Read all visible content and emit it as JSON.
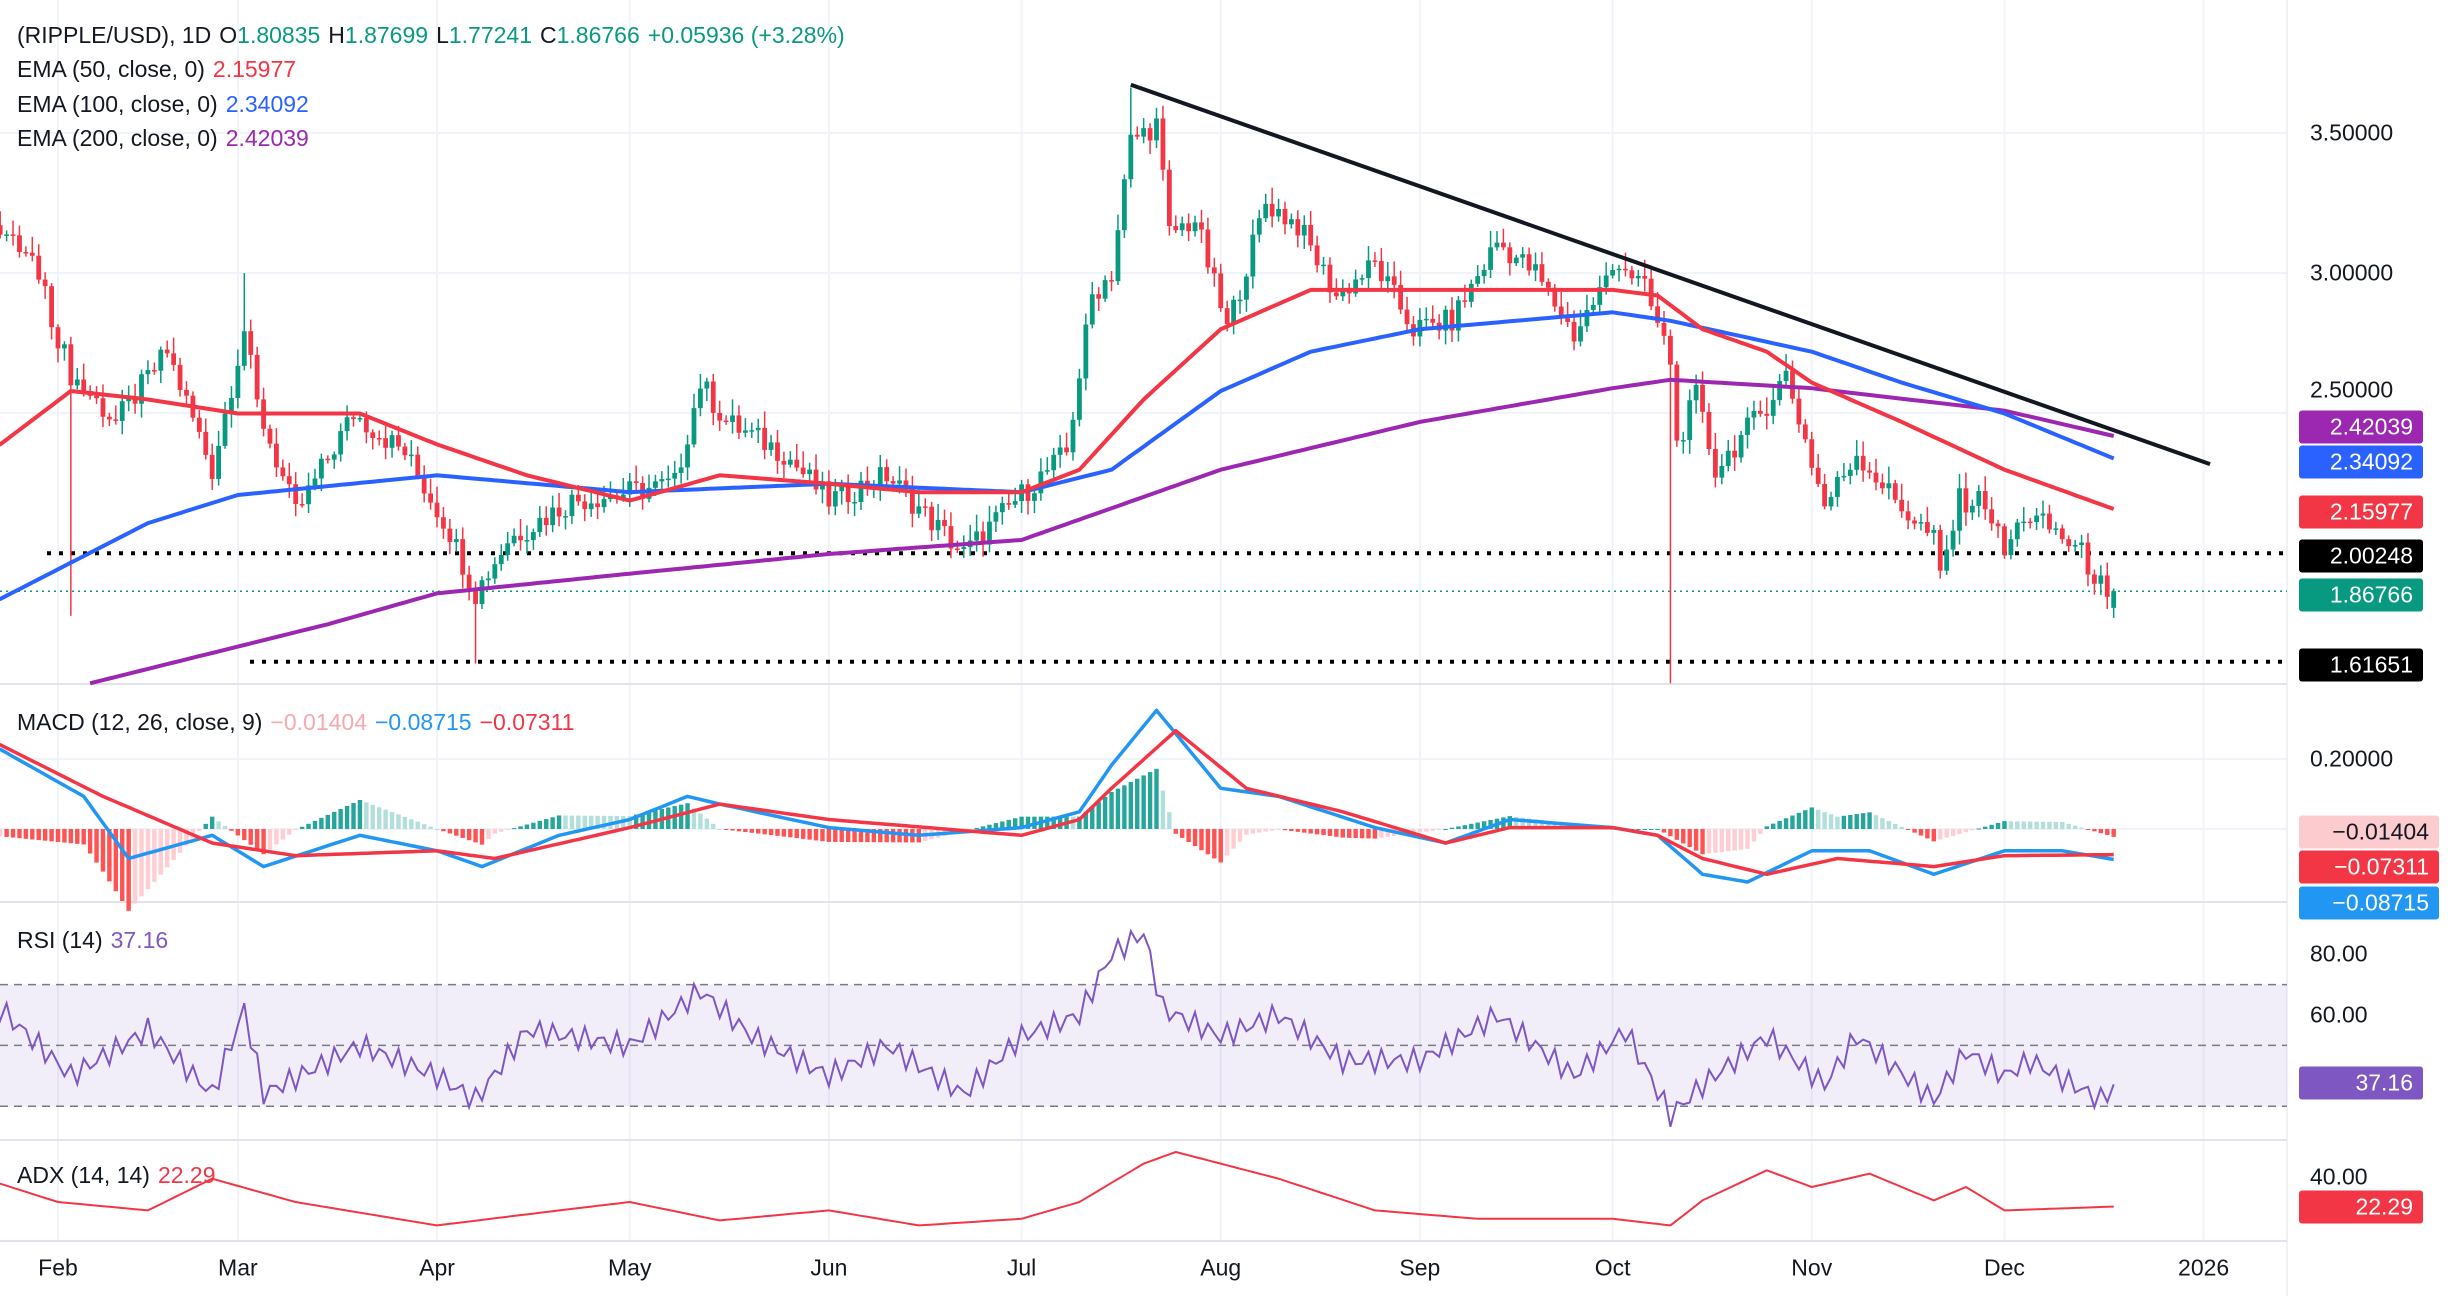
{
  "legend": {
    "symbol": "(RIPPLE/USD), 1D",
    "o_label": "O",
    "o": "1.80835",
    "h_label": "H",
    "h": "1.87699",
    "l_label": "L",
    "l": "1.77241",
    "c_label": "C",
    "c": "1.86766",
    "change": "+0.05936 (+3.28%)",
    "ema50_label": "EMA (50, close, 0)",
    "ema50": "2.15977",
    "ema100_label": "EMA (100, close, 0)",
    "ema100": "2.34092",
    "ema200_label": "EMA (200, close, 0)",
    "ema200": "2.42039"
  },
  "macd_legend": {
    "label": "MACD (12, 26, close, 9)",
    "hist": "−0.01404",
    "macd": "−0.08715",
    "signal": "−0.07311"
  },
  "rsi_legend": {
    "label": "RSI (14)",
    "value": "37.16"
  },
  "adx_legend": {
    "label": "ADX (14, 14)",
    "value": "22.29"
  },
  "axes": {
    "price_ticks": [
      "3.50000",
      "3.00000",
      "2.50000"
    ],
    "macd_ticks": [
      "0.20000"
    ],
    "rsi_ticks": [
      "80.00",
      "60.00"
    ],
    "adx_ticks": [
      "40.00"
    ],
    "months": [
      "Feb",
      "Mar",
      "Apr",
      "May",
      "Jun",
      "Jul",
      "Aug",
      "Sep",
      "Oct",
      "Nov",
      "Dec",
      "2026"
    ]
  },
  "tags": {
    "ema200": "2.42039",
    "ema100": "2.34092",
    "ema50": "2.15977",
    "support1": "2.00248",
    "last": "1.86766",
    "support2": "1.61651",
    "macd_hist": "−0.01404",
    "macd_signal": "−0.07311",
    "macd_line": "−0.08715",
    "rsi": "37.16",
    "adx": "22.29"
  },
  "colors": {
    "up": "#089981",
    "down": "#F23645",
    "ema50": "#F23645",
    "ema100": "#2962FF",
    "ema200": "#9C27B0",
    "macd": "#2196F3",
    "signal": "#F23645",
    "rsi": "#7E57C2",
    "adx": "#F23645",
    "trendline": "#131722"
  },
  "chart_data": [
    {
      "type": "candlestick",
      "title": "(RIPPLE/USD), 1D",
      "year": 2025,
      "close_path": [
        [
          "01-23",
          3.14
        ],
        [
          "01-28",
          3.05
        ],
        [
          "02-03",
          2.64
        ],
        [
          "02-10",
          2.47
        ],
        [
          "02-18",
          2.72
        ],
        [
          "02-25",
          2.3
        ],
        [
          "03-02",
          2.8
        ],
        [
          "03-04",
          2.53
        ],
        [
          "03-10",
          2.14
        ],
        [
          "03-19",
          2.5
        ],
        [
          "03-27",
          2.36
        ],
        [
          "04-03",
          2.08
        ],
        [
          "04-07",
          1.86
        ],
        [
          "04-12",
          2.05
        ],
        [
          "04-22",
          2.19
        ],
        [
          "05-01",
          2.22
        ],
        [
          "05-08",
          2.25
        ],
        [
          "05-12",
          2.61
        ],
        [
          "05-16",
          2.47
        ],
        [
          "05-25",
          2.36
        ],
        [
          "06-01",
          2.19
        ],
        [
          "06-10",
          2.28
        ],
        [
          "06-22",
          2.0
        ],
        [
          "06-30",
          2.19
        ],
        [
          "07-08",
          2.36
        ],
        [
          "07-12",
          2.92
        ],
        [
          "07-15",
          3.0
        ],
        [
          "07-18",
          3.47
        ],
        [
          "07-22",
          3.53
        ],
        [
          "07-24",
          3.14
        ],
        [
          "07-28",
          3.19
        ],
        [
          "08-02",
          2.8
        ],
        [
          "08-08",
          3.25
        ],
        [
          "08-13",
          3.17
        ],
        [
          "08-19",
          2.92
        ],
        [
          "08-25",
          3.03
        ],
        [
          "08-31",
          2.8
        ],
        [
          "09-06",
          2.83
        ],
        [
          "09-13",
          3.11
        ],
        [
          "09-19",
          3.0
        ],
        [
          "09-25",
          2.78
        ],
        [
          "10-02",
          3.05
        ],
        [
          "10-06",
          2.94
        ],
        [
          "10-10",
          2.69
        ],
        [
          "10-11",
          2.39
        ],
        [
          "10-14",
          2.56
        ],
        [
          "10-17",
          2.3
        ],
        [
          "10-24",
          2.5
        ],
        [
          "10-28",
          2.64
        ],
        [
          "11-03",
          2.17
        ],
        [
          "11-08",
          2.36
        ],
        [
          "11-14",
          2.19
        ],
        [
          "11-20",
          2.05
        ],
        [
          "11-21",
          1.92
        ],
        [
          "11-24",
          2.19
        ],
        [
          "11-28",
          2.19
        ],
        [
          "12-01",
          2.0
        ],
        [
          "12-04",
          2.14
        ],
        [
          "12-09",
          2.08
        ],
        [
          "12-13",
          2.0
        ],
        [
          "12-16",
          1.89
        ],
        [
          "12-17",
          1.81
        ],
        [
          "12-18",
          1.86766
        ]
      ],
      "notable_wicks": [
        [
          "02-03",
          "low",
          1.78
        ],
        [
          "03-02",
          "high",
          3.0
        ],
        [
          "04-07",
          "low",
          1.61
        ],
        [
          "07-18",
          "high",
          3.66
        ],
        [
          "10-10",
          "low",
          1.54
        ]
      ],
      "ema50": [
        [
          "01-23",
          2.39
        ],
        [
          "02-03",
          2.58
        ],
        [
          "02-15",
          2.55
        ],
        [
          "03-01",
          2.5
        ],
        [
          "03-20",
          2.5
        ],
        [
          "04-01",
          2.39
        ],
        [
          "04-15",
          2.28
        ],
        [
          "05-01",
          2.19
        ],
        [
          "05-15",
          2.28
        ],
        [
          "06-01",
          2.25
        ],
        [
          "06-15",
          2.22
        ],
        [
          "07-01",
          2.22
        ],
        [
          "07-10",
          2.3
        ],
        [
          "07-20",
          2.55
        ],
        [
          "08-01",
          2.8
        ],
        [
          "08-15",
          2.94
        ],
        [
          "09-01",
          2.94
        ],
        [
          "09-15",
          2.94
        ],
        [
          "10-01",
          2.94
        ],
        [
          "10-08",
          2.92
        ],
        [
          "10-15",
          2.8
        ],
        [
          "10-25",
          2.72
        ],
        [
          "11-01",
          2.61
        ],
        [
          "11-15",
          2.47
        ],
        [
          "12-01",
          2.3
        ],
        [
          "12-18",
          2.16
        ]
      ],
      "ema100": [
        [
          "01-23",
          1.84
        ],
        [
          "02-15",
          2.11
        ],
        [
          "03-01",
          2.21
        ],
        [
          "04-01",
          2.28
        ],
        [
          "05-01",
          2.22
        ],
        [
          "06-01",
          2.25
        ],
        [
          "07-01",
          2.22
        ],
        [
          "07-15",
          2.3
        ],
        [
          "08-01",
          2.58
        ],
        [
          "08-15",
          2.72
        ],
        [
          "09-01",
          2.8
        ],
        [
          "10-01",
          2.86
        ],
        [
          "10-10",
          2.83
        ],
        [
          "11-01",
          2.72
        ],
        [
          "11-15",
          2.61
        ],
        [
          "12-01",
          2.5
        ],
        [
          "12-18",
          2.34
        ]
      ],
      "ema200": [
        [
          "02-06",
          1.54
        ],
        [
          "03-15",
          1.75
        ],
        [
          "04-01",
          1.86
        ],
        [
          "05-01",
          1.93
        ],
        [
          "06-01",
          2.0
        ],
        [
          "07-01",
          2.05
        ],
        [
          "08-01",
          2.3
        ],
        [
          "09-01",
          2.47
        ],
        [
          "10-01",
          2.59
        ],
        [
          "10-10",
          2.62
        ],
        [
          "11-01",
          2.59
        ],
        [
          "12-01",
          2.51
        ],
        [
          "12-18",
          2.42
        ]
      ],
      "trendline": [
        [
          "07-18",
          3.67
        ],
        [
          "01-02",
          2.32
        ]
      ],
      "horizontal_levels": [
        2.00248,
        1.61651
      ],
      "last_price": 1.86766,
      "y_ticks": [
        3.5,
        3.0,
        2.5
      ]
    },
    {
      "type": "line",
      "title": "MACD (12, 26, close, 9)",
      "macd": [
        [
          "01-23",
          0.227
        ],
        [
          "02-05",
          0.093
        ],
        [
          "02-12",
          -0.084
        ],
        [
          "02-25",
          -0.018
        ],
        [
          "03-05",
          -0.107
        ],
        [
          "03-20",
          -0.018
        ],
        [
          "04-01",
          -0.062
        ],
        [
          "04-08",
          -0.107
        ],
        [
          "04-20",
          -0.018
        ],
        [
          "05-01",
          0.027
        ],
        [
          "05-10",
          0.093
        ],
        [
          "05-15",
          0.071
        ],
        [
          "06-01",
          0.004
        ],
        [
          "06-15",
          -0.018
        ],
        [
          "07-01",
          0.004
        ],
        [
          "07-10",
          0.049
        ],
        [
          "07-15",
          0.182
        ],
        [
          "07-22",
          0.338
        ],
        [
          "08-01",
          0.116
        ],
        [
          "08-10",
          0.093
        ],
        [
          "08-25",
          0.004
        ],
        [
          "09-05",
          -0.04
        ],
        [
          "09-15",
          0.027
        ],
        [
          "10-01",
          0.004
        ],
        [
          "10-08",
          -0.018
        ],
        [
          "10-15",
          -0.129
        ],
        [
          "10-22",
          -0.151
        ],
        [
          "11-01",
          -0.062
        ],
        [
          "11-10",
          -0.062
        ],
        [
          "11-20",
          -0.129
        ],
        [
          "12-01",
          -0.062
        ],
        [
          "12-10",
          -0.062
        ],
        [
          "12-18",
          -0.087
        ]
      ],
      "signal": [
        [
          "01-23",
          0.24
        ],
        [
          "02-08",
          0.093
        ],
        [
          "02-25",
          -0.04
        ],
        [
          "03-10",
          -0.076
        ],
        [
          "04-01",
          -0.062
        ],
        [
          "04-10",
          -0.084
        ],
        [
          "05-01",
          0.004
        ],
        [
          "05-15",
          0.071
        ],
        [
          "06-01",
          0.027
        ],
        [
          "07-01",
          -0.018
        ],
        [
          "07-10",
          0.027
        ],
        [
          "07-15",
          0.116
        ],
        [
          "07-25",
          0.28
        ],
        [
          "08-05",
          0.116
        ],
        [
          "08-20",
          0.049
        ],
        [
          "09-05",
          -0.04
        ],
        [
          "09-15",
          0.004
        ],
        [
          "10-01",
          0.004
        ],
        [
          "10-08",
          -0.018
        ],
        [
          "10-15",
          -0.084
        ],
        [
          "10-25",
          -0.129
        ],
        [
          "11-05",
          -0.084
        ],
        [
          "11-20",
          -0.107
        ],
        [
          "12-01",
          -0.076
        ],
        [
          "12-18",
          -0.073
        ]
      ],
      "y_ticks": [
        0.2
      ]
    },
    {
      "type": "line",
      "title": "RSI (14)",
      "band": [
        30,
        70
      ],
      "middle": 50,
      "values": [
        [
          "01-23",
          62
        ],
        [
          "02-03",
          40
        ],
        [
          "02-15",
          55
        ],
        [
          "02-25",
          34
        ],
        [
          "03-02",
          62
        ],
        [
          "03-05",
          34
        ],
        [
          "03-20",
          50
        ],
        [
          "04-01",
          40
        ],
        [
          "04-07",
          32
        ],
        [
          "04-15",
          55
        ],
        [
          "05-01",
          50
        ],
        [
          "05-12",
          68
        ],
        [
          "05-20",
          53
        ],
        [
          "06-01",
          40
        ],
        [
          "06-10",
          50
        ],
        [
          "06-22",
          34
        ],
        [
          "07-01",
          53
        ],
        [
          "07-10",
          60
        ],
        [
          "07-15",
          80
        ],
        [
          "07-20",
          87
        ],
        [
          "07-23",
          62
        ],
        [
          "08-01",
          53
        ],
        [
          "08-10",
          60
        ],
        [
          "08-20",
          45
        ],
        [
          "09-01",
          45
        ],
        [
          "09-13",
          60
        ],
        [
          "09-25",
          40
        ],
        [
          "10-03",
          55
        ],
        [
          "10-10",
          27
        ],
        [
          "10-15",
          37
        ],
        [
          "10-25",
          53
        ],
        [
          "11-03",
          37
        ],
        [
          "11-08",
          53
        ],
        [
          "11-20",
          32
        ],
        [
          "11-25",
          48
        ],
        [
          "12-01",
          40
        ],
        [
          "12-05",
          45
        ],
        [
          "12-16",
          32
        ],
        [
          "12-18",
          37.16
        ]
      ],
      "y_ticks": [
        80,
        60
      ]
    },
    {
      "type": "line",
      "title": "ADX (14, 14)",
      "values": [
        [
          "01-23",
          36
        ],
        [
          "02-01",
          25
        ],
        [
          "02-15",
          20
        ],
        [
          "02-25",
          39
        ],
        [
          "03-10",
          25
        ],
        [
          "04-01",
          11
        ],
        [
          "04-20",
          20
        ],
        [
          "05-01",
          25
        ],
        [
          "05-15",
          14
        ],
        [
          "06-01",
          20
        ],
        [
          "06-15",
          11
        ],
        [
          "07-01",
          15
        ],
        [
          "07-10",
          25
        ],
        [
          "07-20",
          48
        ],
        [
          "07-25",
          55
        ],
        [
          "08-10",
          39
        ],
        [
          "08-25",
          20
        ],
        [
          "09-10",
          15
        ],
        [
          "10-01",
          15
        ],
        [
          "10-10",
          11
        ],
        [
          "10-15",
          26
        ],
        [
          "10-25",
          44
        ],
        [
          "11-01",
          34
        ],
        [
          "11-10",
          42
        ],
        [
          "11-20",
          26
        ],
        [
          "11-25",
          34
        ],
        [
          "12-01",
          20
        ],
        [
          "12-18",
          22.29
        ]
      ],
      "y_ticks": [
        40
      ]
    }
  ]
}
